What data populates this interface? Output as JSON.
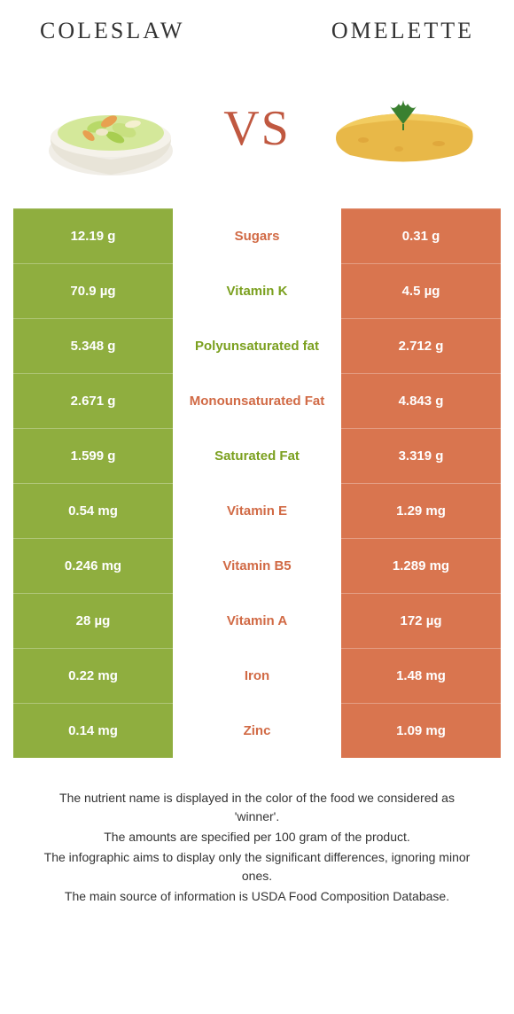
{
  "header": {
    "food_left": "Coleslaw",
    "food_right": "Omelette",
    "vs": "VS"
  },
  "colors": {
    "coleslaw": "#8fae3f",
    "omelette": "#d9754f",
    "coleslaw_text": "#7ba01f",
    "omelette_text": "#d16a45"
  },
  "rows": [
    {
      "left": "12.19 g",
      "label": "Sugars",
      "right": "0.31 g",
      "winner": "right"
    },
    {
      "left": "70.9 µg",
      "label": "Vitamin K",
      "right": "4.5 µg",
      "winner": "left"
    },
    {
      "left": "5.348 g",
      "label": "Polyunsaturated fat",
      "right": "2.712 g",
      "winner": "left"
    },
    {
      "left": "2.671 g",
      "label": "Monounsaturated Fat",
      "right": "4.843 g",
      "winner": "right"
    },
    {
      "left": "1.599 g",
      "label": "Saturated Fat",
      "right": "3.319 g",
      "winner": "left"
    },
    {
      "left": "0.54 mg",
      "label": "Vitamin E",
      "right": "1.29 mg",
      "winner": "right"
    },
    {
      "left": "0.246 mg",
      "label": "Vitamin B5",
      "right": "1.289 mg",
      "winner": "right"
    },
    {
      "left": "28 µg",
      "label": "Vitamin A",
      "right": "172 µg",
      "winner": "right"
    },
    {
      "left": "0.22 mg",
      "label": "Iron",
      "right": "1.48 mg",
      "winner": "right"
    },
    {
      "left": "0.14 mg",
      "label": "Zinc",
      "right": "1.09 mg",
      "winner": "right"
    }
  ],
  "footer": {
    "line1": "The nutrient name is displayed in the color of the food we considered as 'winner'.",
    "line2": "The amounts are specified per 100 gram of the product.",
    "line3": "The infographic aims to display only the significant differences, ignoring minor ones.",
    "line4": "The main source of information is USDA Food Composition Database."
  }
}
